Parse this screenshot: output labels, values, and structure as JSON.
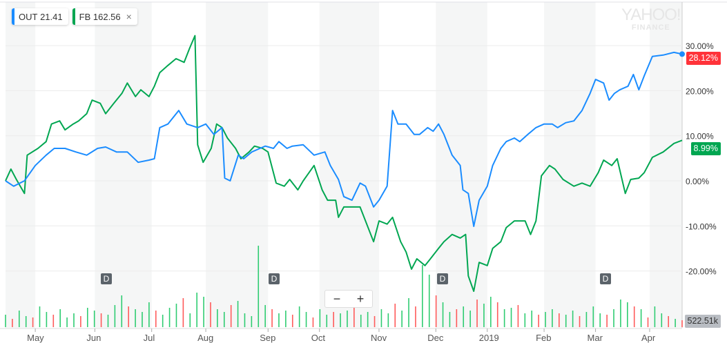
{
  "legend": {
    "series1": {
      "symbol": "OUT",
      "price": "21.41",
      "color": "#1a8cff"
    },
    "series2": {
      "symbol": "FB",
      "price": "162.56",
      "color": "#00a651",
      "close": "×"
    }
  },
  "watermark": {
    "line1": "YAHOO!",
    "line2": "FINANCE"
  },
  "zoom": {
    "minus": "−",
    "plus": "+"
  },
  "dividend_marker": "D",
  "chart_data": {
    "type": "line",
    "title": "",
    "xlabel": "",
    "ylabel": "",
    "ylim": [
      -30,
      35
    ],
    "xlim": [
      0,
      250
    ],
    "y_ticks": [
      30,
      20,
      10,
      0,
      -10,
      -20
    ],
    "y_tick_labels": [
      "30.00%",
      "20.00%",
      "10.00%",
      "0.00%",
      "-10.00%",
      "-20.00%"
    ],
    "x_ticks": [
      {
        "label": "May",
        "x": 11
      },
      {
        "label": "Jun",
        "x": 33
      },
      {
        "label": "Jul",
        "x": 54
      },
      {
        "label": "Aug",
        "x": 74
      },
      {
        "label": "Sep",
        "x": 97
      },
      {
        "label": "Oct",
        "x": 116
      },
      {
        "label": "Nov",
        "x": 138
      },
      {
        "label": "Dec",
        "x": 159
      },
      {
        "label": "2019",
        "x": 178
      },
      {
        "label": "Feb",
        "x": 199
      },
      {
        "label": "Mar",
        "x": 218
      },
      {
        "label": "Apr",
        "x": 238
      }
    ],
    "dividends_x": [
      37,
      99,
      161,
      222
    ],
    "series": [
      {
        "name": "OUT",
        "color": "#1a8cff",
        "last_label": "28.12%",
        "badge_color": "#ff333a",
        "x": [
          0,
          3,
          7,
          11,
          15,
          18,
          22,
          26,
          30,
          34,
          37,
          41,
          45,
          49,
          53,
          55,
          57,
          60,
          64,
          67,
          71,
          74,
          77,
          80,
          81,
          83,
          86,
          88,
          91,
          94,
          96,
          99,
          101,
          104,
          106,
          110,
          114,
          118,
          120,
          123,
          125,
          128,
          131,
          133,
          136,
          138,
          141,
          143,
          145,
          148,
          151,
          153,
          156,
          158,
          160,
          162,
          165,
          168,
          169,
          171,
          173,
          175,
          178,
          180,
          183,
          185,
          188,
          190,
          193,
          196,
          199,
          202,
          204,
          207,
          210,
          213,
          216,
          218,
          221,
          223,
          225,
          227,
          230,
          232,
          234,
          236,
          239,
          243,
          247,
          250
        ],
        "y": [
          0,
          -1.2,
          0,
          3.4,
          5.7,
          7.2,
          7.2,
          6.4,
          5.7,
          7.2,
          7.5,
          6.4,
          6.4,
          4.1,
          4.6,
          4.9,
          11.8,
          12.6,
          15.6,
          12.6,
          11.8,
          12.6,
          10.3,
          11.8,
          0.6,
          0,
          5.7,
          4.9,
          6.4,
          7.2,
          7.7,
          7.2,
          8.7,
          7.2,
          7.7,
          8.0,
          5.7,
          6.4,
          3.4,
          0.3,
          -3.5,
          -4.3,
          -0.5,
          -1.2,
          -5.8,
          -4.3,
          -1.2,
          15.6,
          12.6,
          12.6,
          10.3,
          10.3,
          11.8,
          11.0,
          12.6,
          10.3,
          5.7,
          3.4,
          -2.0,
          -2.8,
          -10.1,
          -4.3,
          -1.2,
          3.4,
          7.2,
          8.7,
          9.5,
          8.7,
          10.3,
          11.8,
          12.6,
          12.6,
          11.8,
          12.9,
          13.3,
          15.6,
          19.4,
          22.5,
          21.7,
          17.9,
          19.4,
          20.2,
          21.0,
          23.6,
          20.2,
          23.3,
          27.6,
          27.9,
          28.5,
          28.12
        ]
      },
      {
        "name": "FB",
        "color": "#00a651",
        "last_label": "8.99%",
        "badge_color": "#00a651",
        "x": [
          0,
          2,
          4,
          7,
          8,
          12,
          15,
          17,
          20,
          22,
          25,
          27,
          30,
          32,
          35,
          37,
          40,
          43,
          45,
          48,
          50,
          53,
          55,
          57,
          60,
          63,
          66,
          68,
          70,
          71,
          73,
          76,
          78,
          80,
          82,
          85,
          87,
          90,
          92,
          95,
          97,
          100,
          103,
          105,
          108,
          110,
          114,
          117,
          119,
          122,
          123,
          125,
          128,
          131,
          133,
          136,
          138,
          141,
          143,
          146,
          148,
          150,
          152,
          155,
          157,
          160,
          162,
          165,
          168,
          170,
          171,
          173,
          175,
          178,
          180,
          183,
          185,
          188,
          192,
          194,
          196,
          198,
          201,
          203,
          206,
          210,
          213,
          216,
          219,
          221,
          224,
          226,
          229,
          231,
          234,
          236,
          239,
          243,
          247,
          250
        ],
        "y": [
          0,
          2.6,
          0.3,
          -2.8,
          5.7,
          7.2,
          8.7,
          12.6,
          13.3,
          11.3,
          12.6,
          13.3,
          14.9,
          17.9,
          17.2,
          14.9,
          17.2,
          19.4,
          21.7,
          18.7,
          20.2,
          18.7,
          21.0,
          24.0,
          25.6,
          27.1,
          26.3,
          29.4,
          32.2,
          8.0,
          4.1,
          7.2,
          12.6,
          11.8,
          9.5,
          7.2,
          4.9,
          6.4,
          7.7,
          7.2,
          6.4,
          -0.5,
          -1.2,
          0.3,
          -2.0,
          0,
          3.4,
          -2.0,
          -4.3,
          -4.3,
          -8.1,
          -5.8,
          -5.8,
          -5.8,
          -8.9,
          -13.5,
          -8.9,
          -9.6,
          -8.1,
          -13.5,
          -15.8,
          -19.6,
          -17.3,
          -18.8,
          -17.3,
          -15.0,
          -13.5,
          -11.9,
          -12.7,
          -11.9,
          -21.1,
          -24.5,
          -18.1,
          -18.8,
          -15.0,
          -13.5,
          -10.4,
          -8.9,
          -8.9,
          -11.9,
          -8.9,
          1.1,
          3.4,
          2.6,
          0.3,
          -1.2,
          -0.5,
          -1.2,
          1.8,
          4.6,
          3.4,
          4.9,
          -2.8,
          0.3,
          0.6,
          1.8,
          5.2,
          6.4,
          8.3,
          8.99
        ]
      }
    ],
    "volume": {
      "unit": "k",
      "last_label": "522.51k",
      "up_color": "#2ecc71",
      "down_color": "#ff5a5a",
      "ymax": 6000,
      "values": [
        900,
        -600,
        1200,
        800,
        -700,
        1500,
        1100,
        -900,
        1300,
        700,
        1000,
        -800,
        1400,
        1200,
        -1000,
        900,
        1600,
        2300,
        -1500,
        1300,
        1100,
        1800,
        -1200,
        900,
        1400,
        1700,
        -2100,
        1000,
        2500,
        2200,
        -1800,
        1300,
        1100,
        -1600,
        1900,
        1000,
        800,
        5900,
        1600,
        -1300,
        1000,
        1200,
        -900,
        1500,
        1100,
        -700,
        1300,
        900,
        -1100,
        1000,
        1200,
        -1500,
        900,
        1100,
        -800,
        1300,
        1000,
        -1700,
        1200,
        2100,
        -1500,
        4500,
        3800,
        -2300,
        1800,
        1100,
        -1300,
        1500,
        1200,
        -2000,
        1700,
        2200,
        -1800,
        1300,
        1400,
        -1600,
        1000,
        1200,
        -900,
        1100,
        1300,
        -1000,
        900,
        1200,
        -800,
        1100,
        1500,
        1000,
        -900,
        1300,
        2000,
        1800,
        -1500,
        1300,
        -700,
        1500,
        1000,
        -800,
        600,
        -500
      ]
    }
  }
}
